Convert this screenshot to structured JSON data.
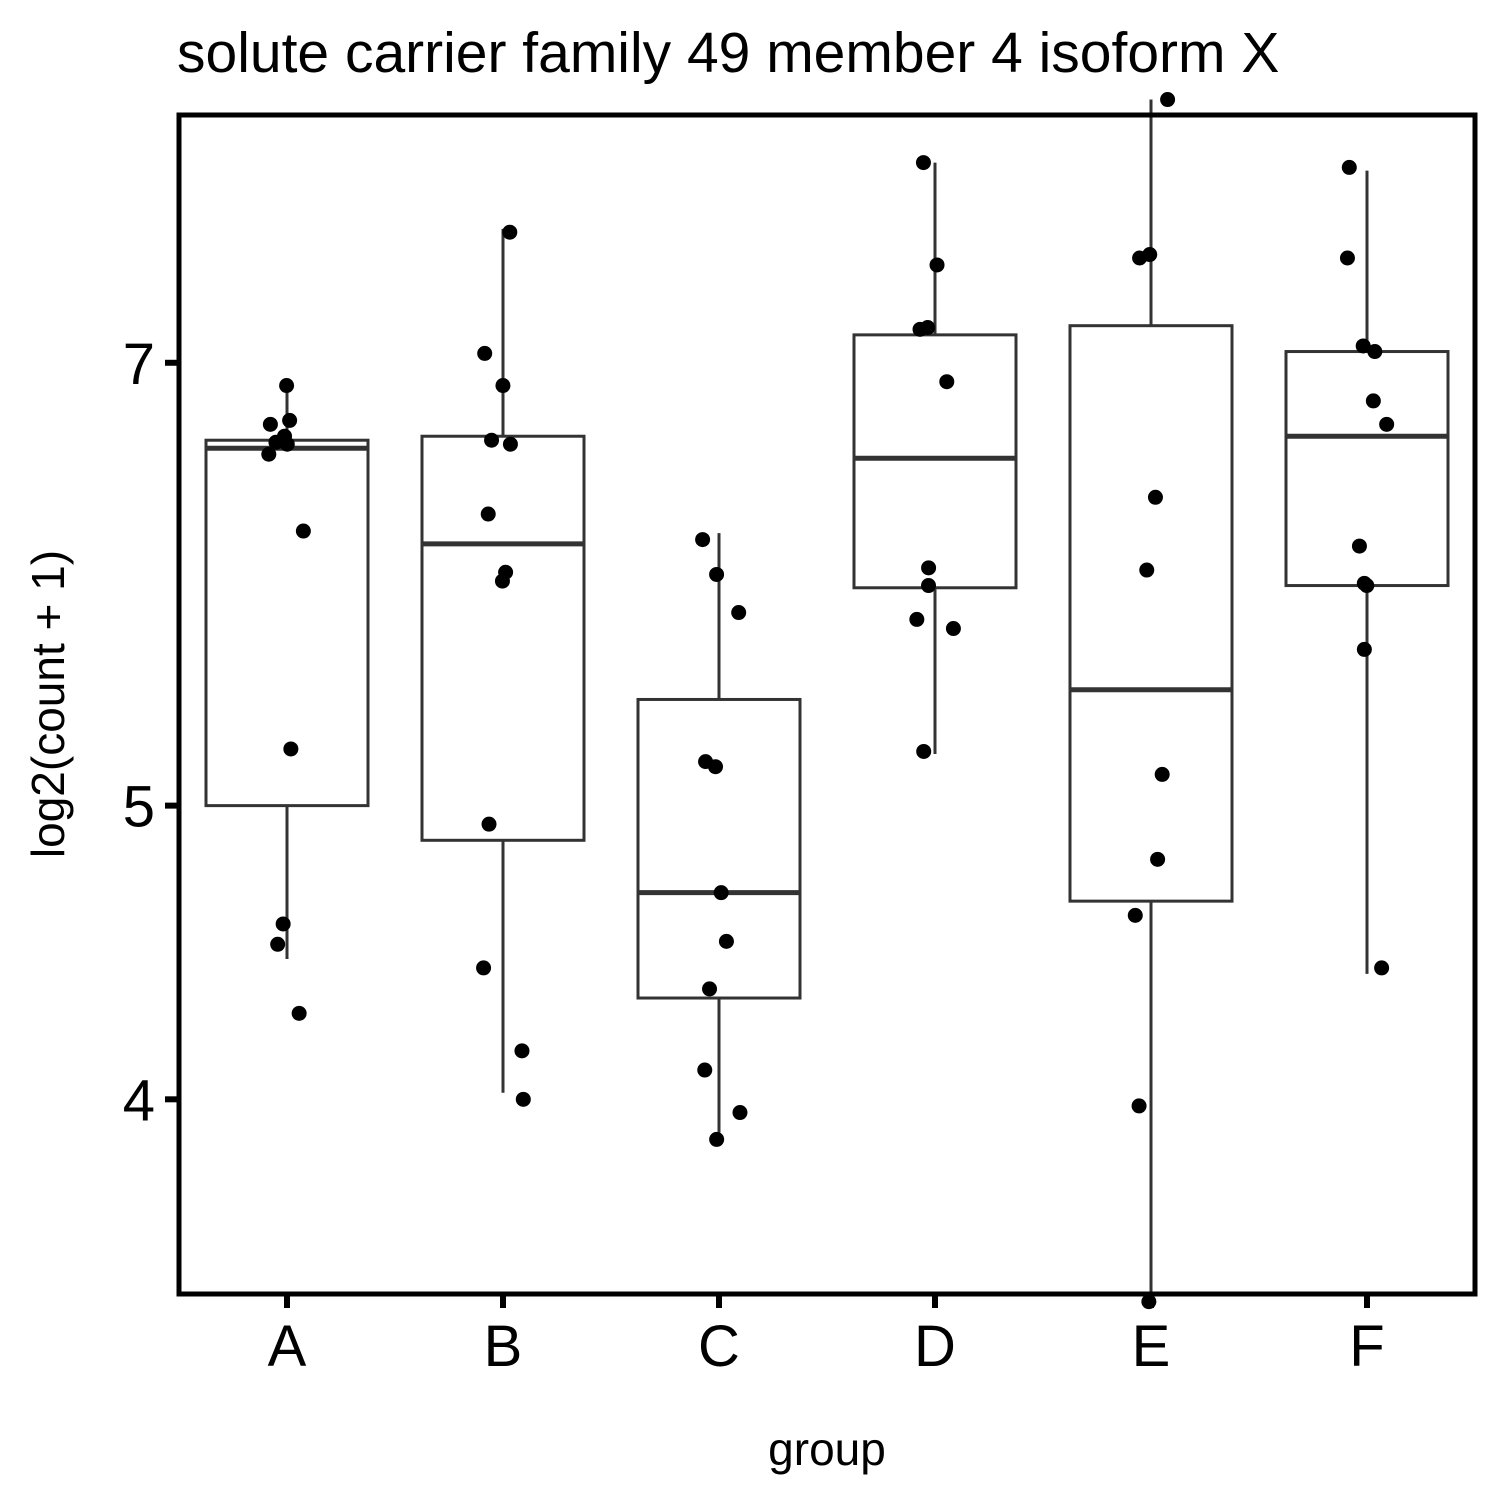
{
  "chart_data": {
    "type": "box",
    "title": "solute carrier family 49 member 4 isoform X",
    "xlabel": "group",
    "ylabel": "log2(count + 1)",
    "y_scale": "log",
    "ylim": [
      3.45,
      8.45
    ],
    "y_ticks": [
      4,
      5,
      7
    ],
    "y_tick_labels": [
      "4",
      "5",
      "7"
    ],
    "categories": [
      "A",
      "B",
      "C",
      "D",
      "E",
      "F"
    ],
    "boxes": [
      {
        "group": "A",
        "lower_whisker": 4.45,
        "q1": 5.0,
        "median": 6.56,
        "q3": 6.6,
        "upper_whisker": 6.87
      },
      {
        "group": "B",
        "lower_whisker": 4.02,
        "q1": 4.87,
        "median": 6.1,
        "q3": 6.62,
        "upper_whisker": 7.75
      },
      {
        "group": "C",
        "lower_whisker": 3.9,
        "q1": 4.32,
        "median": 4.68,
        "q3": 5.42,
        "upper_whisker": 6.15
      },
      {
        "group": "D",
        "lower_whisker": 5.2,
        "q1": 5.9,
        "median": 6.51,
        "q3": 7.15,
        "upper_whisker": 8.15
      },
      {
        "group": "E",
        "lower_whisker": 3.42,
        "q1": 4.65,
        "median": 5.46,
        "q3": 7.2,
        "upper_whisker": 8.55
      },
      {
        "group": "F",
        "lower_whisker": 4.4,
        "q1": 5.91,
        "median": 6.62,
        "q3": 7.06,
        "upper_whisker": 8.1
      }
    ],
    "points": [
      {
        "group": "A",
        "values": [
          6.88,
          6.7,
          6.68,
          6.59,
          6.62,
          6.58,
          6.53,
          6.16,
          5.22,
          4.57,
          4.5,
          4.27
        ]
      },
      {
        "group": "B",
        "values": [
          7.73,
          7.05,
          6.88,
          6.6,
          6.58,
          6.24,
          5.97,
          5.93,
          4.93,
          4.42,
          4.15,
          4.0
        ]
      },
      {
        "group": "C",
        "values": [
          6.12,
          5.96,
          5.79,
          5.17,
          5.15,
          4.68,
          4.51,
          4.35,
          4.09,
          3.96,
          3.88
        ]
      },
      {
        "group": "D",
        "values": [
          8.15,
          7.54,
          7.19,
          7.18,
          6.9,
          5.99,
          5.91,
          5.76,
          5.72,
          5.21
        ]
      },
      {
        "group": "E",
        "values": [
          8.55,
          7.6,
          7.58,
          6.32,
          5.98,
          5.12,
          4.8,
          4.6,
          3.98,
          3.43
        ]
      },
      {
        "group": "F",
        "values": [
          8.12,
          7.58,
          7.09,
          7.06,
          6.8,
          6.68,
          6.09,
          5.92,
          5.91,
          5.63,
          4.42
        ]
      }
    ]
  }
}
